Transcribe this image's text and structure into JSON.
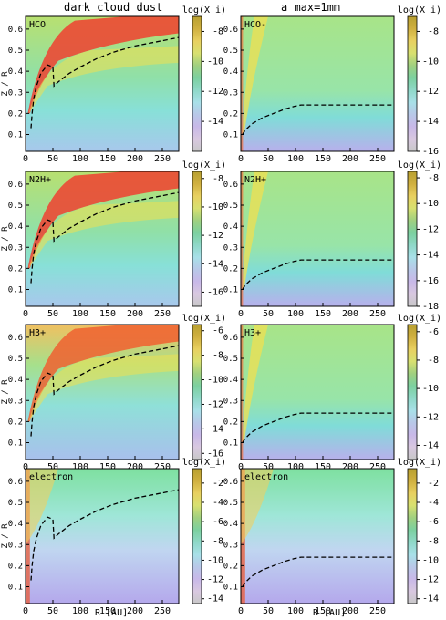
{
  "figure": {
    "column_titles": [
      "dark cloud dust",
      "a max=1mm"
    ],
    "xlabel": "R [AU]",
    "ylabel": "Z / R",
    "colorbar_label": "log(X_i)"
  },
  "chart_data": [
    {
      "type": "heatmap",
      "species": "HCO",
      "dust": "dark cloud dust",
      "xlim": [
        0,
        280
      ],
      "ylim": [
        0.02,
        0.66
      ],
      "xticks": [
        0,
        50,
        100,
        150,
        200,
        250
      ],
      "yticks": [
        0.1,
        0.2,
        0.3,
        0.4,
        0.5,
        0.6
      ],
      "colorbar_ticks": [
        -8,
        -10,
        -12,
        -14
      ],
      "colorbar_range": [
        -16,
        -7
      ],
      "boundary_line": {
        "x": [
          10,
          12,
          15,
          20,
          28,
          40,
          50,
          52,
          60,
          80,
          100,
          130,
          160,
          200,
          240,
          280
        ],
        "y": [
          0.13,
          0.2,
          0.27,
          0.33,
          0.39,
          0.43,
          0.42,
          0.33,
          0.35,
          0.39,
          0.42,
          0.46,
          0.49,
          0.52,
          0.54,
          0.56
        ]
      }
    },
    {
      "type": "heatmap",
      "species": "HCO-",
      "dust": "a max=1mm",
      "xlim": [
        0,
        280
      ],
      "ylim": [
        0.02,
        0.66
      ],
      "xticks": [
        0,
        50,
        100,
        150,
        200,
        250
      ],
      "yticks": [
        0.1,
        0.2,
        0.3,
        0.4,
        0.5,
        0.6
      ],
      "colorbar_ticks": [
        -8,
        -10,
        -12,
        -14,
        -16
      ],
      "colorbar_range": [
        -16,
        -7
      ],
      "boundary_line": {
        "x": [
          3,
          8,
          20,
          40,
          60,
          80,
          100,
          110,
          150,
          200,
          280
        ],
        "y": [
          0.1,
          0.12,
          0.15,
          0.18,
          0.2,
          0.22,
          0.235,
          0.24,
          0.24,
          0.24,
          0.24
        ]
      }
    },
    {
      "type": "heatmap",
      "species": "N2H+",
      "dust": "dark cloud dust",
      "xlim": [
        0,
        280
      ],
      "ylim": [
        0.02,
        0.66
      ],
      "xticks": [
        0,
        50,
        100,
        150,
        200,
        250
      ],
      "yticks": [
        0.1,
        0.2,
        0.3,
        0.4,
        0.5,
        0.6
      ],
      "colorbar_ticks": [
        -8,
        -10,
        -12,
        -14,
        -16
      ],
      "colorbar_range": [
        -17,
        -7.5
      ],
      "boundary_line": {
        "x": [
          10,
          12,
          15,
          20,
          28,
          40,
          50,
          52,
          60,
          80,
          100,
          130,
          160,
          200,
          240,
          280
        ],
        "y": [
          0.13,
          0.2,
          0.27,
          0.33,
          0.39,
          0.43,
          0.42,
          0.33,
          0.35,
          0.39,
          0.42,
          0.46,
          0.49,
          0.52,
          0.54,
          0.56
        ]
      }
    },
    {
      "type": "heatmap",
      "species": "N2H+",
      "dust": "a max=1mm",
      "xlim": [
        0,
        280
      ],
      "ylim": [
        0.02,
        0.66
      ],
      "xticks": [
        0,
        50,
        100,
        150,
        200,
        250
      ],
      "yticks": [
        0.1,
        0.2,
        0.3,
        0.4,
        0.5,
        0.6
      ],
      "colorbar_ticks": [
        -8,
        -10,
        -12,
        -14,
        -16,
        -18
      ],
      "colorbar_range": [
        -18,
        -7.5
      ],
      "boundary_line": {
        "x": [
          3,
          8,
          20,
          40,
          60,
          80,
          100,
          110,
          150,
          200,
          280
        ],
        "y": [
          0.1,
          0.12,
          0.15,
          0.18,
          0.2,
          0.22,
          0.235,
          0.24,
          0.24,
          0.24,
          0.24
        ]
      }
    },
    {
      "type": "heatmap",
      "species": "H3+",
      "dust": "dark cloud dust",
      "xlim": [
        0,
        280
      ],
      "ylim": [
        0.02,
        0.66
      ],
      "xticks": [
        0,
        50,
        100,
        150,
        200,
        250
      ],
      "yticks": [
        0.1,
        0.2,
        0.3,
        0.4,
        0.5,
        0.6
      ],
      "colorbar_ticks": [
        -6,
        -8,
        -10,
        -12,
        -14,
        -16
      ],
      "colorbar_range": [
        -16.5,
        -5.5
      ],
      "boundary_line": {
        "x": [
          10,
          12,
          15,
          20,
          28,
          40,
          50,
          52,
          60,
          80,
          100,
          130,
          160,
          200,
          240,
          280
        ],
        "y": [
          0.13,
          0.2,
          0.27,
          0.33,
          0.39,
          0.43,
          0.42,
          0.33,
          0.35,
          0.39,
          0.42,
          0.46,
          0.49,
          0.52,
          0.54,
          0.56
        ]
      }
    },
    {
      "type": "heatmap",
      "species": "H3+",
      "dust": "a max=1mm",
      "xlim": [
        0,
        280
      ],
      "ylim": [
        0.02,
        0.66
      ],
      "xticks": [
        0,
        50,
        100,
        150,
        200,
        250
      ],
      "yticks": [
        0.1,
        0.2,
        0.3,
        0.4,
        0.5,
        0.6
      ],
      "colorbar_ticks": [
        -6,
        -8,
        -10,
        -12,
        -14
      ],
      "colorbar_range": [
        -15,
        -5.5
      ],
      "boundary_line": {
        "x": [
          3,
          8,
          20,
          40,
          60,
          80,
          100,
          110,
          150,
          200,
          280
        ],
        "y": [
          0.1,
          0.12,
          0.15,
          0.18,
          0.2,
          0.22,
          0.235,
          0.24,
          0.24,
          0.24,
          0.24
        ]
      }
    },
    {
      "type": "heatmap",
      "species": "electron",
      "dust": "dark cloud dust",
      "xlim": [
        0,
        280
      ],
      "ylim": [
        0.02,
        0.66
      ],
      "xticks": [
        0,
        50,
        100,
        150,
        200,
        250
      ],
      "yticks": [
        0.1,
        0.2,
        0.3,
        0.4,
        0.5,
        0.6
      ],
      "colorbar_ticks": [
        -2,
        -4,
        -6,
        -8,
        -10,
        -12,
        -14
      ],
      "colorbar_range": [
        -14.5,
        -0.5
      ],
      "boundary_line": {
        "x": [
          10,
          12,
          15,
          20,
          28,
          40,
          50,
          52,
          60,
          80,
          100,
          130,
          160,
          200,
          240,
          280
        ],
        "y": [
          0.13,
          0.2,
          0.27,
          0.33,
          0.39,
          0.43,
          0.42,
          0.33,
          0.35,
          0.39,
          0.42,
          0.46,
          0.49,
          0.52,
          0.54,
          0.56
        ]
      }
    },
    {
      "type": "heatmap",
      "species": "electron",
      "dust": "a max=1mm",
      "xlim": [
        0,
        280
      ],
      "ylim": [
        0.02,
        0.66
      ],
      "xticks": [
        0,
        50,
        100,
        150,
        200,
        250
      ],
      "yticks": [
        0.1,
        0.2,
        0.3,
        0.4,
        0.5,
        0.6
      ],
      "colorbar_ticks": [
        -2,
        -4,
        -6,
        -8,
        -10,
        -12,
        -14
      ],
      "colorbar_range": [
        -14.5,
        -0.5
      ],
      "boundary_line": {
        "x": [
          3,
          8,
          20,
          40,
          60,
          80,
          100,
          110,
          150,
          200,
          280
        ],
        "y": [
          0.1,
          0.12,
          0.15,
          0.18,
          0.2,
          0.22,
          0.235,
          0.24,
          0.24,
          0.24,
          0.24
        ]
      }
    }
  ]
}
